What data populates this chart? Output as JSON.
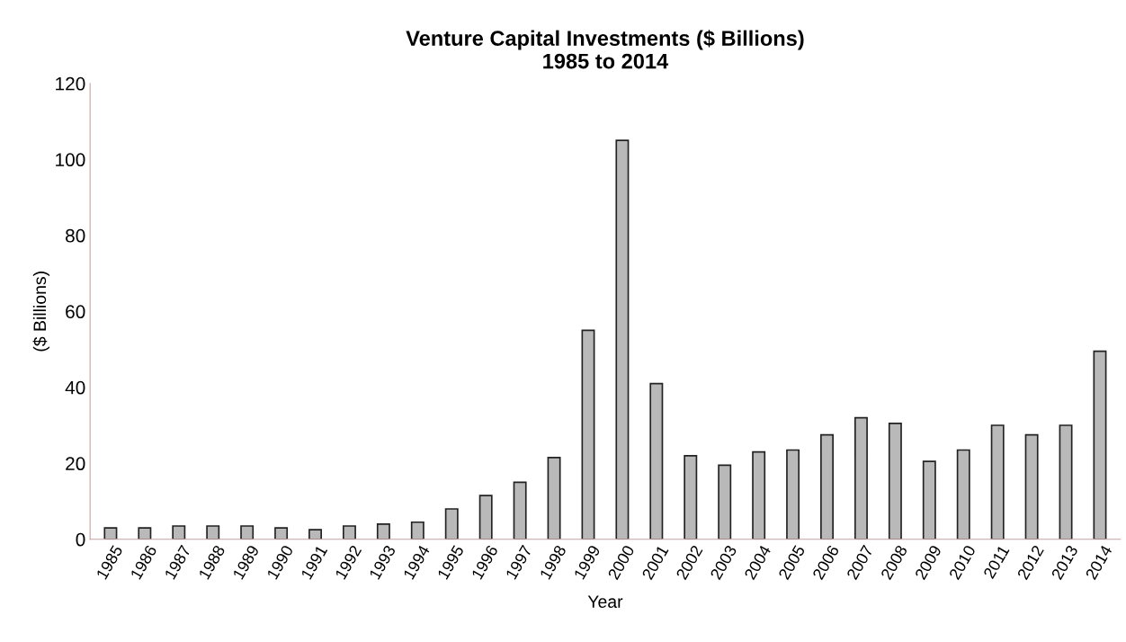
{
  "chart_data": {
    "type": "bar",
    "title": "Venture Capital Investments ($ Billions)\n1985 to 2014",
    "xlabel": "Year",
    "ylabel": "($ Billions)",
    "categories": [
      "1985",
      "1986",
      "1987",
      "1988",
      "1989",
      "1990",
      "1991",
      "1992",
      "1993",
      "1994",
      "1995",
      "1996",
      "1997",
      "1998",
      "1999",
      "2000",
      "2001",
      "2002",
      "2003",
      "2004",
      "2005",
      "2006",
      "2007",
      "2008",
      "2009",
      "2010",
      "2011",
      "2012",
      "2013",
      "2014"
    ],
    "values": [
      3,
      3,
      3.5,
      3.5,
      3.5,
      3,
      2.5,
      3.5,
      4,
      4.5,
      8,
      11.5,
      15,
      21.5,
      55,
      105,
      41,
      22,
      19.5,
      23,
      23.5,
      27.5,
      32,
      30.5,
      20.5,
      23.5,
      30,
      27.5,
      30,
      49.5
    ],
    "color": "#b9b9b9",
    "ylim": [
      0,
      120
    ],
    "yticks": [
      0,
      20,
      40,
      60,
      80,
      100,
      120
    ],
    "grid": false
  }
}
